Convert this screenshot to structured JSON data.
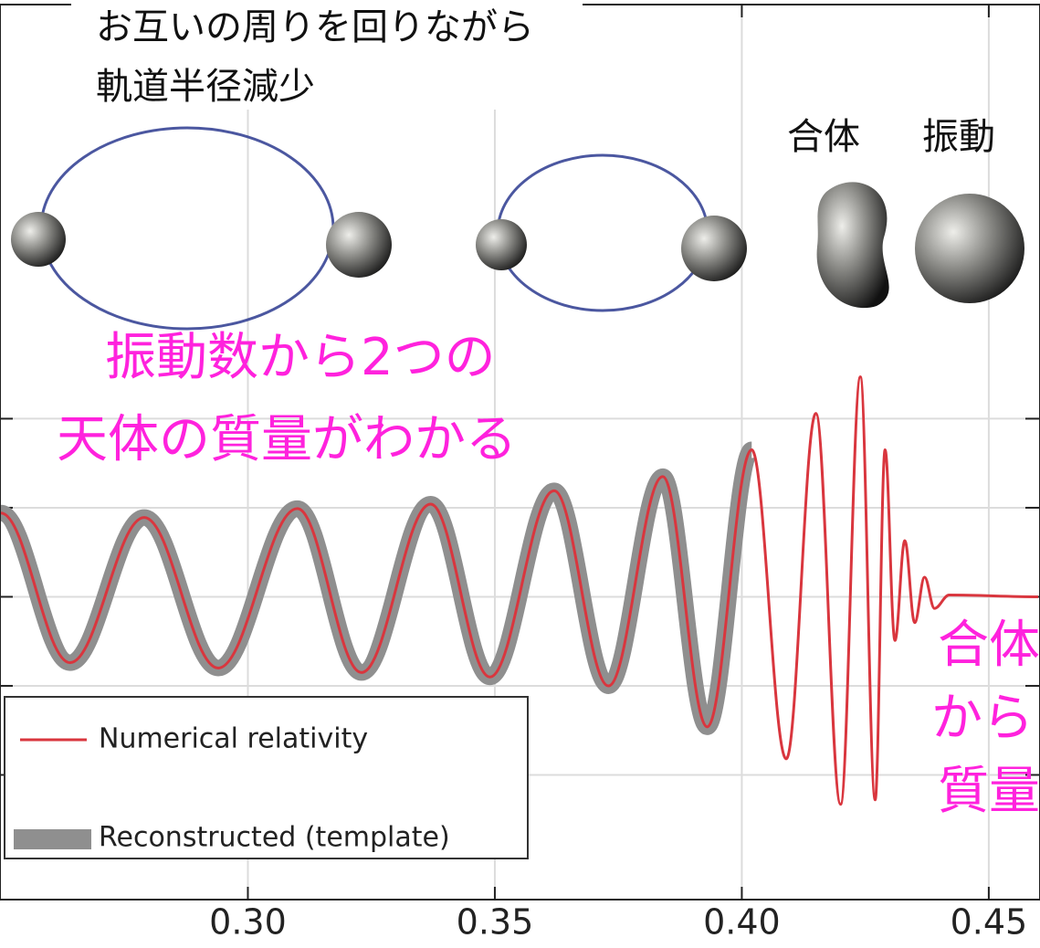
{
  "chart_data": {
    "type": "line",
    "annotations": [
      "お互いの周りを回りながら",
      "軌道半径減少",
      "合体",
      "振動",
      "振動数から2つの",
      "天体の質量がわかる",
      "合体",
      "から",
      "質量"
    ],
    "x": [
      0.25,
      0.264,
      0.279,
      0.294,
      0.31,
      0.323,
      0.337,
      0.349,
      0.362,
      0.373,
      0.384,
      0.393,
      0.402,
      0.409,
      0.415,
      0.42,
      0.424,
      0.427,
      0.429,
      0.431,
      0.433,
      0.435,
      0.437,
      0.439,
      0.442,
      0.46
    ],
    "series": [
      {
        "name": "Reconstructed (template)",
        "color": "#8f8f8f",
        "values": [
          0.94,
          -0.74,
          0.89,
          -0.8,
          0.99,
          -0.85,
          1.04,
          -0.9,
          1.19,
          -1.0,
          1.35,
          -1.46,
          1.65,
          null,
          null,
          null,
          null,
          null,
          null,
          null,
          null,
          null,
          null,
          null,
          null,
          null
        ]
      },
      {
        "name": "Numerical relativity",
        "color": "#d9363e",
        "values": [
          0.94,
          -0.74,
          0.89,
          -0.8,
          0.99,
          -0.85,
          1.04,
          -0.9,
          1.19,
          -1.0,
          1.35,
          -1.46,
          1.65,
          -1.82,
          2.06,
          -2.33,
          2.47,
          -2.28,
          1.65,
          -0.49,
          0.63,
          -0.29,
          0.22,
          -0.13,
          0.02,
          0
        ]
      }
    ],
    "xlim": [
      0.25,
      0.46
    ],
    "xticks": [
      {
        "value": 0.3,
        "label": "0.30"
      },
      {
        "value": 0.35,
        "label": "0.35"
      },
      {
        "value": 0.4,
        "label": "0.40"
      },
      {
        "value": 0.45,
        "label": "0.45"
      }
    ],
    "ylim": [
      -3.4,
      6.65
    ],
    "yticks": [
      -2,
      -1,
      0,
      1,
      2
    ],
    "grid": true
  }
}
